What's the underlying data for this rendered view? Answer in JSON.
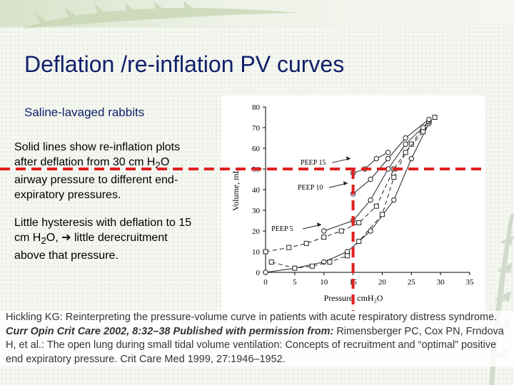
{
  "slide": {
    "title": "Deflation /re-inflation PV curves",
    "subtitle": "Saline-lavaged rabbits",
    "para1": [
      "Solid lines show re-inflation plots",
      "after deflation from 30 cm H",
      "2",
      "O",
      "airway pressure to different end-",
      "expiratory pressures."
    ],
    "para2": [
      "Little hysteresis with deflation to 15",
      "cm H",
      "2",
      "O, ",
      "➔",
      " little derecruitment",
      "above that pressure."
    ],
    "citation": {
      "part1": "Hickling KG: Reinterpreting the pressure-volume curve in patients with acute respiratory distress syndrome.",
      "part2": "Curr Opin Crit Care 2002, 8:32–38 Published with permission from:",
      "part3": "Rimensberger PC, Cox PN, Frndova H, et al.: The open lung during small tidal volume ventilation: Concepts of recruitment and “optimal” positive end expiratory pressure. Crit Care Med 1999, 27:1946–1952."
    }
  },
  "chart_data": {
    "type": "line",
    "xlabel": "Pressure, cmH₂O",
    "ylabel": "Volume, mL",
    "xlim": [
      0,
      35
    ],
    "ylim": [
      0,
      80
    ],
    "xticks": [
      0,
      5,
      10,
      15,
      20,
      25,
      30,
      35
    ],
    "yticks": [
      0,
      10,
      20,
      30,
      40,
      50,
      60,
      70,
      80
    ],
    "annotations": [
      {
        "text": "PEEP 15",
        "x": 6,
        "y": 52
      },
      {
        "text": "PEEP 10",
        "x": 5.5,
        "y": 40
      },
      {
        "text": "PEEP 5",
        "x": 1,
        "y": 20
      }
    ],
    "series": [
      {
        "marker": "circle",
        "style": "solid",
        "x": [
          0,
          5,
          10,
          14,
          18,
          22,
          25,
          28
        ],
        "y": [
          0,
          2,
          5,
          10,
          20,
          35,
          55,
          72
        ]
      },
      {
        "marker": "circle",
        "style": "solid",
        "x": [
          10,
          15,
          18,
          21,
          24,
          28
        ],
        "y": [
          20,
          25,
          35,
          50,
          62,
          73
        ]
      },
      {
        "marker": "circle",
        "style": "solid",
        "x": [
          15,
          18,
          21,
          24,
          28
        ],
        "y": [
          38,
          45,
          55,
          65,
          74
        ]
      },
      {
        "marker": "circle",
        "style": "solid",
        "x": [
          15,
          17,
          19,
          21
        ],
        "y": [
          48,
          50,
          55,
          58
        ]
      },
      {
        "marker": "square",
        "style": "dashed",
        "x": [
          0,
          4,
          7,
          10,
          13,
          16,
          19,
          22,
          25,
          27,
          29
        ],
        "y": [
          10,
          12,
          14,
          17,
          20,
          24,
          32,
          50,
          62,
          70,
          75
        ]
      },
      {
        "marker": "square",
        "style": "dashed",
        "x": [
          1,
          5,
          8,
          11,
          14,
          16,
          20,
          22,
          24,
          27,
          29
        ],
        "y": [
          5,
          2,
          3,
          5,
          8,
          15,
          28,
          46,
          58,
          68,
          75
        ]
      }
    ],
    "reference_lines": [
      {
        "orientation": "horizontal",
        "y": 50,
        "color": "#e02020",
        "style": "dashed"
      },
      {
        "orientation": "vertical",
        "x": 15,
        "color": "#e02020",
        "style": "dashed"
      }
    ],
    "grid": false
  },
  "colors": {
    "title": "#10206a",
    "reference": "#e02020"
  }
}
